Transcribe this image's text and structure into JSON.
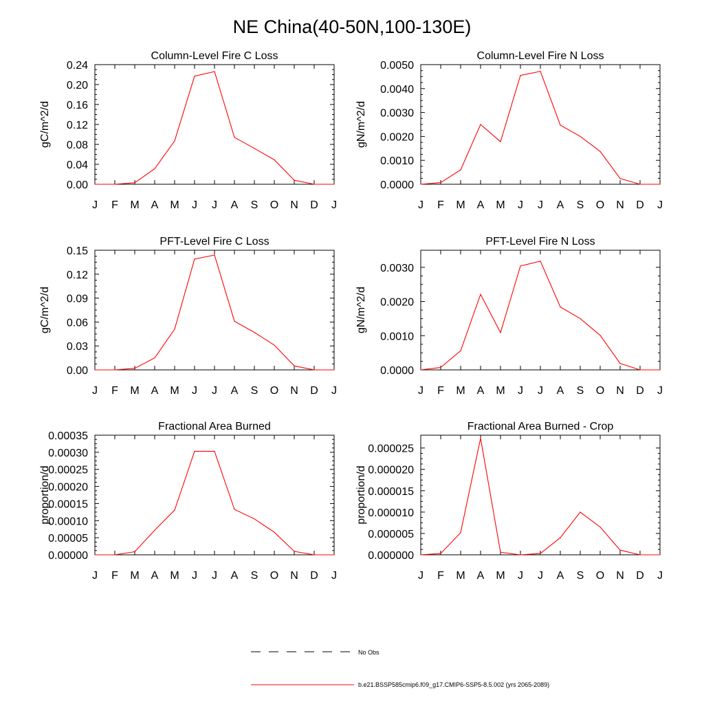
{
  "figure_title": "NE China(40-50N,100-130E)",
  "legend": {
    "obs_label": "No Obs",
    "model_label": "b.e21.BSSP585cmip6.f09_g17.CMIP6-SSP5-8.5.002 (yrs 2065-2089)",
    "model_color": "#ff0000",
    "obs_color": "#000000"
  },
  "chart_data": [
    {
      "type": "line",
      "title": "Column-Level Fire C Loss",
      "ylabel": "gC/m^2/d",
      "xlabel": "",
      "x": [
        "J",
        "F",
        "M",
        "A",
        "M",
        "J",
        "J",
        "A",
        "S",
        "O",
        "N",
        "D",
        "J"
      ],
      "ylim": [
        0,
        0.24
      ],
      "yticks": [
        "0.00",
        "0.04",
        "0.08",
        "0.12",
        "0.16",
        "0.20",
        "0.24"
      ],
      "series": [
        {
          "values": [
            0.0,
            0.0,
            0.003,
            0.031,
            0.087,
            0.217,
            0.226,
            0.094,
            0.072,
            0.049,
            0.008,
            0.0,
            0.0
          ]
        }
      ]
    },
    {
      "type": "line",
      "title": "Column-Level Fire N Loss",
      "ylabel": "gN/m^2/d",
      "xlabel": "",
      "x": [
        "J",
        "F",
        "M",
        "A",
        "M",
        "J",
        "J",
        "A",
        "S",
        "O",
        "N",
        "D",
        "J"
      ],
      "ylim": [
        0,
        0.005
      ],
      "yticks": [
        "0.0000",
        "0.0010",
        "0.0020",
        "0.0030",
        "0.0040",
        "0.0050"
      ],
      "series": [
        {
          "values": [
            0.0,
            7e-05,
            0.0006,
            0.0025,
            0.00178,
            0.00455,
            0.00472,
            0.00247,
            0.002,
            0.00137,
            0.00024,
            0.0,
            0.0
          ]
        }
      ]
    },
    {
      "type": "line",
      "title": "PFT-Level Fire C Loss",
      "ylabel": "gC/m^2/d",
      "xlabel": "",
      "x": [
        "J",
        "F",
        "M",
        "A",
        "M",
        "J",
        "J",
        "A",
        "S",
        "O",
        "N",
        "D",
        "J"
      ],
      "ylim": [
        0,
        0.15
      ],
      "yticks": [
        "0.00",
        "0.03",
        "0.06",
        "0.09",
        "0.12",
        "0.15"
      ],
      "series": [
        {
          "values": [
            0.0,
            0.0,
            0.002,
            0.015,
            0.051,
            0.139,
            0.144,
            0.061,
            0.047,
            0.031,
            0.005,
            0.0,
            0.0
          ]
        }
      ]
    },
    {
      "type": "line",
      "title": "PFT-Level Fire N Loss",
      "ylabel": "gN/m^2/d",
      "xlabel": "",
      "x": [
        "J",
        "F",
        "M",
        "A",
        "M",
        "J",
        "J",
        "A",
        "S",
        "O",
        "N",
        "D",
        "J"
      ],
      "ylim": [
        0,
        0.0035
      ],
      "yticks": [
        "0.0000",
        "0.0010",
        "0.0020",
        "0.0030"
      ],
      "series": [
        {
          "values": [
            0.0,
            7e-05,
            0.00056,
            0.00221,
            0.00109,
            0.00304,
            0.00318,
            0.00184,
            0.0015,
            0.00101,
            0.00019,
            0.0,
            0.0
          ]
        }
      ]
    },
    {
      "type": "line",
      "title": "Fractional Area Burned",
      "ylabel": "proportion/d",
      "xlabel": "",
      "x": [
        "J",
        "F",
        "M",
        "A",
        "M",
        "J",
        "J",
        "A",
        "S",
        "O",
        "N",
        "D",
        "J"
      ],
      "ylim": [
        0,
        0.00035
      ],
      "yticks": [
        "0.00000",
        "0.00005",
        "0.00010",
        "0.00015",
        "0.00020",
        "0.00025",
        "0.00030",
        "0.00035"
      ],
      "series": [
        {
          "values": [
            0.0,
            0.0,
            9e-06,
            7.2e-05,
            0.000131,
            0.000303,
            0.000303,
            0.000133,
            0.000105,
            6.6e-05,
            1e-05,
            0.0,
            0.0
          ]
        }
      ]
    },
    {
      "type": "line",
      "title": "Fractional Area Burned - Crop",
      "ylabel": "proportion/d",
      "xlabel": "",
      "x": [
        "J",
        "F",
        "M",
        "A",
        "M",
        "J",
        "J",
        "A",
        "S",
        "O",
        "N",
        "D",
        "J"
      ],
      "ylim": [
        0,
        2.8e-05
      ],
      "yticks": [
        "0.000000",
        "0.000005",
        "0.000010",
        "0.000015",
        "0.000020",
        "0.000025"
      ],
      "series": [
        {
          "values": [
            0.0,
            3e-07,
            5.2e-06,
            2.73e-05,
            6e-07,
            0.0,
            3e-07,
            4e-06,
            1e-05,
            6.5e-06,
            1.1e-06,
            0.0,
            0.0
          ]
        }
      ]
    }
  ]
}
